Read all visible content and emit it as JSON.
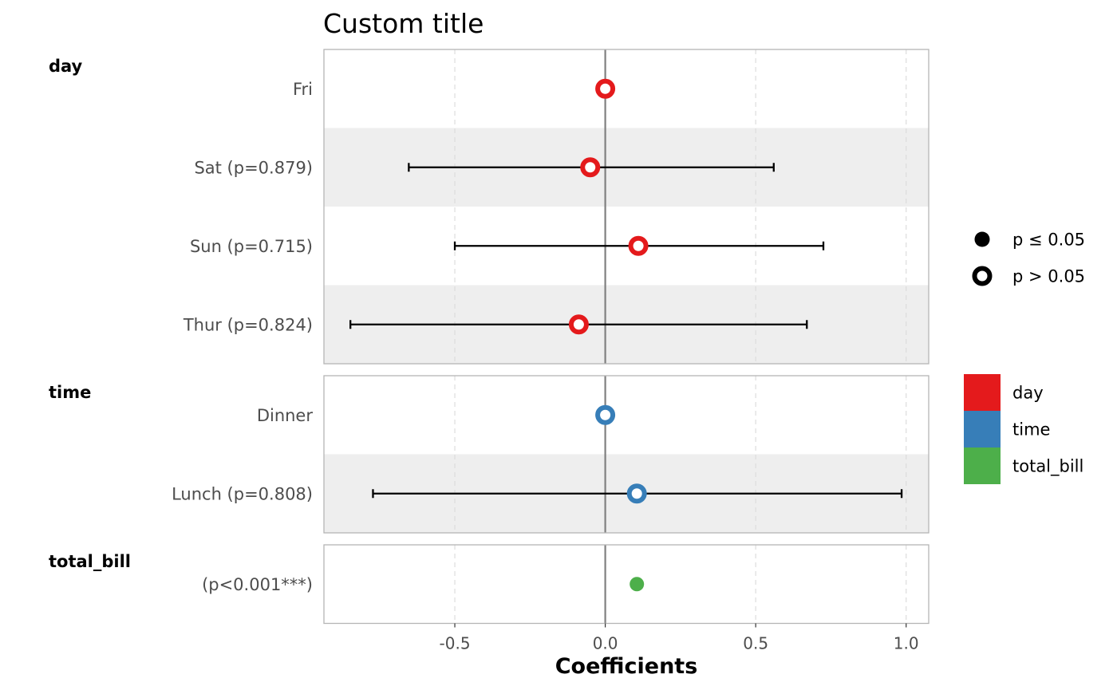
{
  "chart_data": {
    "type": "coefficient-plot",
    "title": "Custom title",
    "xlabel": "Coefficients",
    "xlim": [
      -0.935,
      1.075
    ],
    "xticks": [
      -0.5,
      0.0,
      0.5,
      1.0
    ],
    "xtick_labels": [
      "-0.5",
      "0.0",
      "0.5",
      "1.0"
    ],
    "reference_line": 0,
    "grid": true,
    "facets": [
      {
        "name": "day",
        "color": "#E41A1C",
        "terms": [
          {
            "label": "Fri",
            "estimate": 0.0,
            "ci": null,
            "significant": false
          },
          {
            "label": "Sat (p=0.879)",
            "estimate": -0.05,
            "ci": [
              -0.653,
              0.56
            ],
            "significant": false
          },
          {
            "label": "Sun (p=0.715)",
            "estimate": 0.11,
            "ci": [
              -0.5,
              0.725
            ],
            "significant": false
          },
          {
            "label": "Thur (p=0.824)",
            "estimate": -0.088,
            "ci": [
              -0.847,
              0.67
            ],
            "significant": false
          }
        ]
      },
      {
        "name": "time",
        "color": "#377EB8",
        "terms": [
          {
            "label": "Dinner",
            "estimate": 0.0,
            "ci": null,
            "significant": false
          },
          {
            "label": "Lunch (p=0.808)",
            "estimate": 0.105,
            "ci": [
              -0.772,
              0.985
            ],
            "significant": false
          }
        ]
      },
      {
        "name": "total_bill",
        "color": "#4DAF4A",
        "terms": [
          {
            "label": "(p<0.001***)",
            "estimate": 0.105,
            "ci": null,
            "significant": true
          }
        ]
      }
    ],
    "legend_shape": {
      "entries": [
        {
          "label": "p ≤ 0.05",
          "shape": "filled"
        },
        {
          "label": "p > 0.05",
          "shape": "hollow"
        }
      ]
    },
    "legend_color": {
      "entries": [
        {
          "label": "day",
          "color": "#E41A1C"
        },
        {
          "label": "time",
          "color": "#377EB8"
        },
        {
          "label": "total_bill",
          "color": "#4DAF4A"
        }
      ]
    }
  }
}
